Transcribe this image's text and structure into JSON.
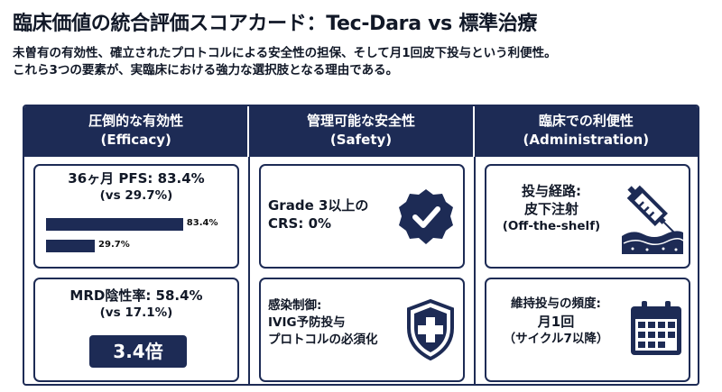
{
  "title": "臨床価値の統合評価スコアカード：Tec-Dara vs 標準治療",
  "subtitle": {
    "line1": "未曽有の有効性、確立されたプロトコルによる安全性の担保、そして月1回皮下投与という利便性。",
    "line2": "これら3つの要素が、実臨床における強力な選択肢となる理由である。"
  },
  "columns": [
    {
      "title": "圧倒的な有効性",
      "subtitle": "(Efficacy)"
    },
    {
      "title": "管理可能な安全性",
      "subtitle": "(Safety)"
    },
    {
      "title": "臨床での利便性",
      "subtitle": "(Administration)"
    }
  ],
  "efficacy": {
    "pfs_line1": "36ヶ月 PFS: 83.4%",
    "pfs_line2": "(vs 29.7%)",
    "bar_top_label": "83.4%",
    "bar_bottom_label": "29.7%",
    "mrd_line1": "MRD陰性率: 58.4%",
    "mrd_line2": "(vs 17.1%)",
    "badge": "3.4倍"
  },
  "chart_data": {
    "type": "bar",
    "categories": [
      "83.4%",
      "29.7%"
    ],
    "values": [
      83.4,
      29.7
    ],
    "xlim": [
      0,
      100
    ]
  },
  "safety": {
    "crs_line1": "Grade 3以上の",
    "crs_line2": "CRS: 0%",
    "infection_line1": "感染制御:",
    "infection_line2": "IVIG予防投与",
    "infection_line3": "プロトコルの必須化"
  },
  "administration": {
    "route_line1": "投与経路:",
    "route_line2": "皮下注射",
    "route_line3": "(Off-the-shelf)",
    "freq_line1": "維持投与の頻度:",
    "freq_line2": "月1回",
    "freq_line3": "（サイクル7以降）"
  },
  "icons": {
    "check": "check-badge-icon",
    "shield": "shield-cross-icon",
    "syringe": "syringe-skin-icon",
    "calendar": "calendar-icon"
  },
  "colors": {
    "navy": "#1d2b55",
    "white": "#ffffff"
  }
}
